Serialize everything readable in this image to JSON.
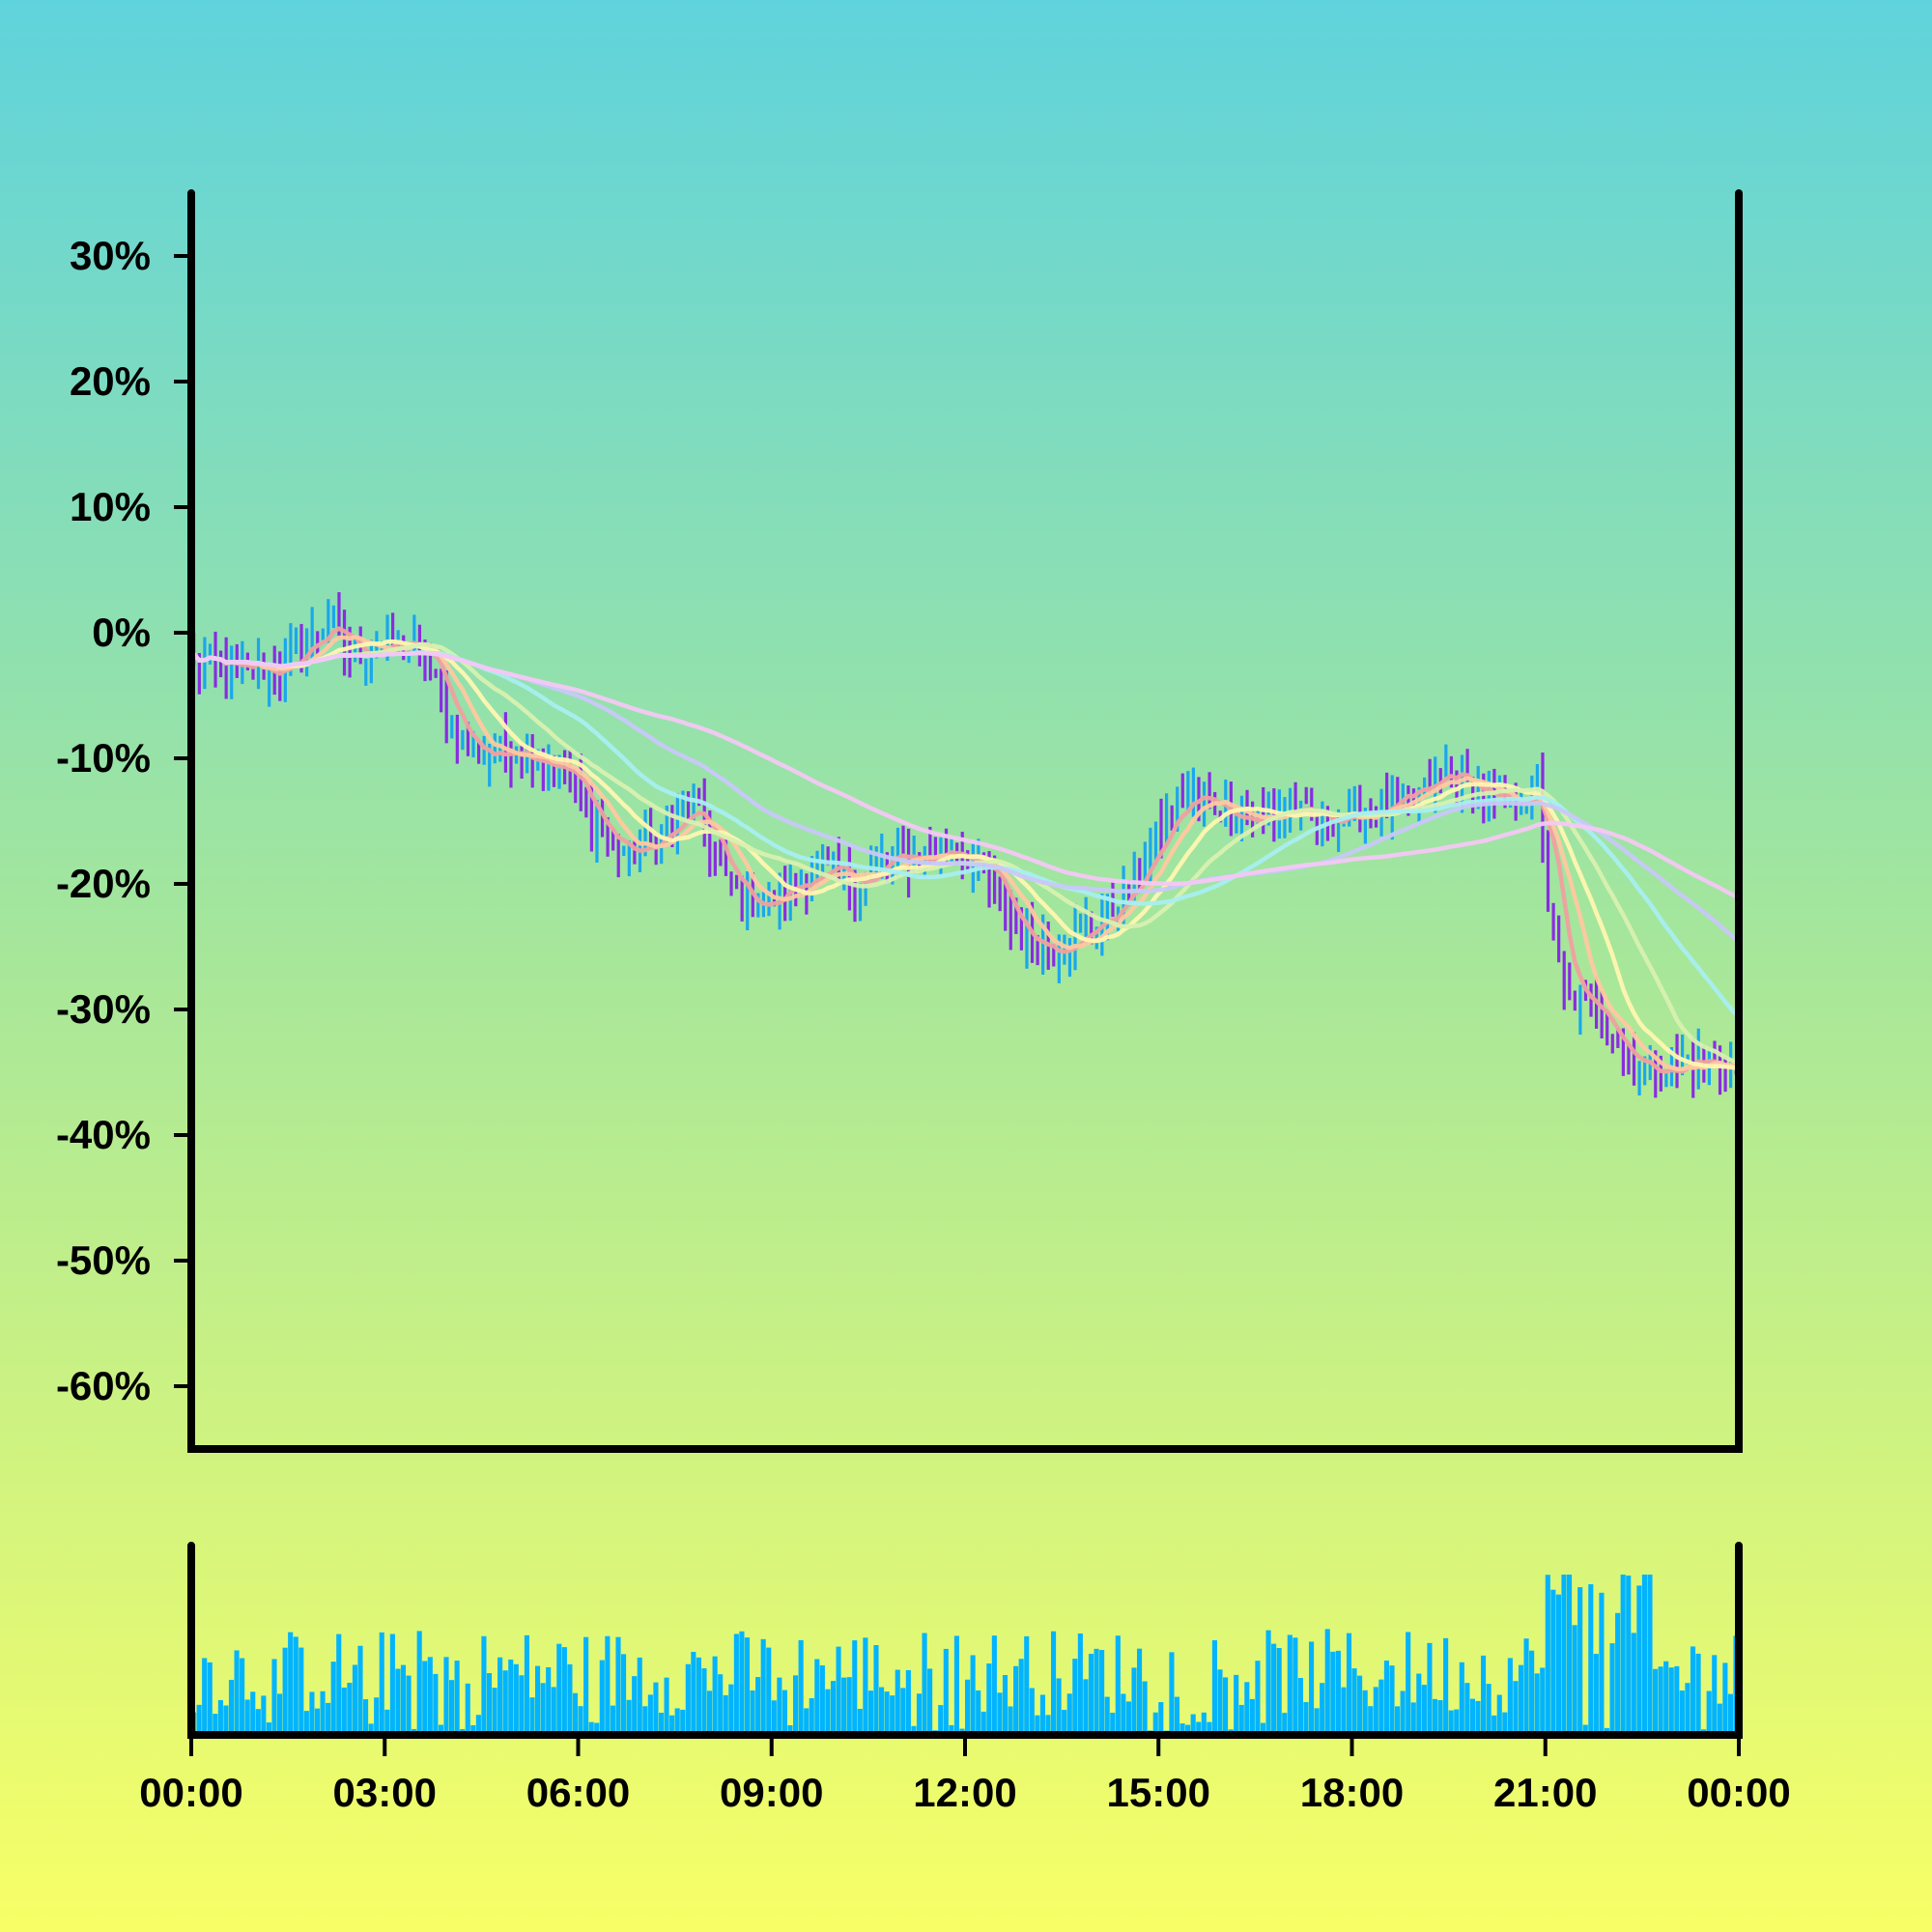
{
  "chart_data": {
    "type": "line",
    "title": "",
    "xlabel": "",
    "ylabel": "",
    "x_ticks": [
      "00:00",
      "03:00",
      "06:00",
      "09:00",
      "12:00",
      "15:00",
      "18:00",
      "21:00",
      "00:00"
    ],
    "y_ticks": [
      "30%",
      "20%",
      "10%",
      "0%",
      "-10%",
      "-20%",
      "-30%",
      "-40%",
      "-50%",
      "-60%"
    ],
    "xlim_hours": [
      0,
      24
    ],
    "ylim_percent": [
      -65,
      35
    ],
    "grid": false,
    "legend": "none",
    "price_keypoints": [
      {
        "t": 0.0,
        "v": -2
      },
      {
        "t": 0.5,
        "v": -3
      },
      {
        "t": 1.0,
        "v": -3
      },
      {
        "t": 1.4,
        "v": -3
      },
      {
        "t": 1.8,
        "v": -1
      },
      {
        "t": 2.1,
        "v": 1
      },
      {
        "t": 2.5,
        "v": -2
      },
      {
        "t": 2.8,
        "v": -1
      },
      {
        "t": 3.2,
        "v": -1
      },
      {
        "t": 3.6,
        "v": -1.5
      },
      {
        "t": 4.0,
        "v": -7
      },
      {
        "t": 4.5,
        "v": -10
      },
      {
        "t": 5.0,
        "v": -9
      },
      {
        "t": 5.8,
        "v": -11
      },
      {
        "t": 6.2,
        "v": -15
      },
      {
        "t": 6.8,
        "v": -18
      },
      {
        "t": 7.3,
        "v": -16
      },
      {
        "t": 7.8,
        "v": -14
      },
      {
        "t": 8.3,
        "v": -20
      },
      {
        "t": 8.8,
        "v": -22
      },
      {
        "t": 9.3,
        "v": -20
      },
      {
        "t": 9.8,
        "v": -19
      },
      {
        "t": 10.3,
        "v": -20
      },
      {
        "t": 10.8,
        "v": -18
      },
      {
        "t": 11.3,
        "v": -18
      },
      {
        "t": 11.8,
        "v": -17
      },
      {
        "t": 12.3,
        "v": -19
      },
      {
        "t": 12.8,
        "v": -24
      },
      {
        "t": 13.3,
        "v": -25
      },
      {
        "t": 13.8,
        "v": -24
      },
      {
        "t": 14.3,
        "v": -22
      },
      {
        "t": 14.7,
        "v": -19
      },
      {
        "t": 15.0,
        "v": -16
      },
      {
        "t": 15.4,
        "v": -13
      },
      {
        "t": 16.0,
        "v": -14
      },
      {
        "t": 16.5,
        "v": -15
      },
      {
        "t": 17.0,
        "v": -14
      },
      {
        "t": 17.5,
        "v": -15
      },
      {
        "t": 18.0,
        "v": -14.5
      },
      {
        "t": 18.5,
        "v": -14
      },
      {
        "t": 19.0,
        "v": -13
      },
      {
        "t": 19.5,
        "v": -11
      },
      {
        "t": 20.0,
        "v": -13
      },
      {
        "t": 20.5,
        "v": -14
      },
      {
        "t": 20.9,
        "v": -12
      },
      {
        "t": 21.0,
        "v": -20
      },
      {
        "t": 21.3,
        "v": -29
      },
      {
        "t": 21.8,
        "v": -30
      },
      {
        "t": 22.3,
        "v": -34
      },
      {
        "t": 22.8,
        "v": -35
      },
      {
        "t": 23.3,
        "v": -34
      },
      {
        "t": 24.0,
        "v": -35
      }
    ],
    "series": [
      {
        "values": "moving average 1 (short)",
        "color": "#f0a0a0"
      },
      {
        "values": "moving average 2",
        "color": "#ffc8a0"
      },
      {
        "values": "moving average 3",
        "color": "#fff5b0"
      },
      {
        "values": "moving average 4",
        "color": "#d8f0b0"
      },
      {
        "values": "moving average 5",
        "color": "#a8eef0"
      },
      {
        "values": "moving average 6",
        "color": "#c8c8f8"
      },
      {
        "values": "moving average 7 (long)",
        "color": "#f4c8f4"
      }
    ],
    "colors": {
      "up_bar": "#1aa7ec",
      "down_bar": "#8a2be2",
      "volume": "#00b4ff",
      "axis": "#000000"
    }
  }
}
